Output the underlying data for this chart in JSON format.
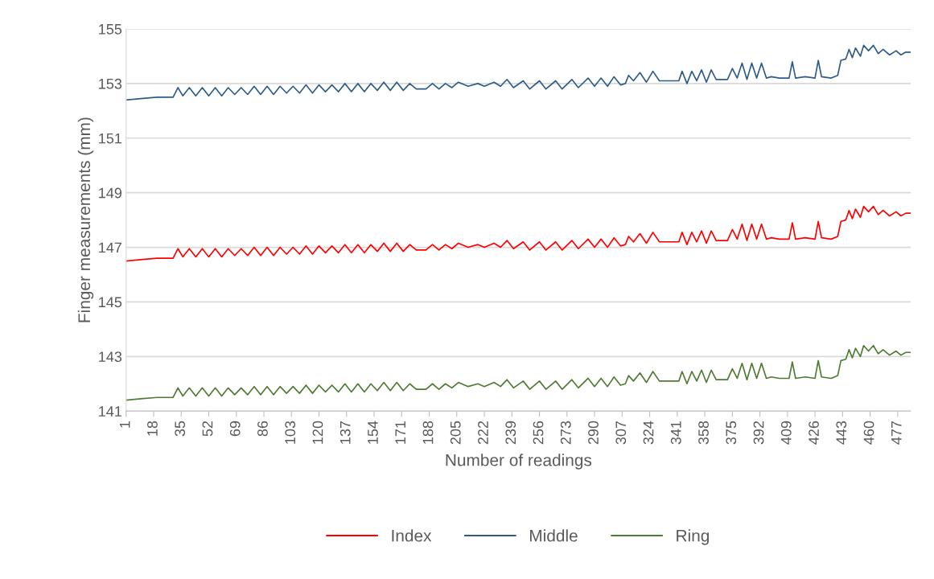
{
  "chart_data": {
    "type": "line",
    "xlabel": "Number of readings",
    "ylabel": "Finger measurements (mm)",
    "x": [
      1,
      10,
      20,
      30,
      33,
      36,
      40,
      44,
      48,
      52,
      56,
      60,
      64,
      68,
      72,
      76,
      80,
      84,
      88,
      92,
      96,
      100,
      104,
      108,
      112,
      116,
      120,
      124,
      128,
      132,
      136,
      140,
      144,
      148,
      152,
      156,
      160,
      164,
      168,
      172,
      176,
      180,
      186,
      190,
      194,
      198,
      202,
      206,
      212,
      218,
      222,
      228,
      232,
      236,
      240,
      246,
      250,
      256,
      260,
      266,
      270,
      276,
      280,
      286,
      290,
      294,
      298,
      302,
      306,
      309,
      311,
      314,
      318,
      322,
      326,
      330,
      335,
      342,
      344,
      347,
      350,
      353,
      356,
      359,
      362,
      365,
      372,
      375,
      378,
      381,
      384,
      387,
      390,
      393,
      396,
      399,
      404,
      410,
      412,
      414,
      420,
      426,
      428,
      430,
      436,
      440,
      442,
      445,
      447,
      449,
      451,
      454,
      456,
      459,
      462,
      465,
      468,
      472,
      476,
      479,
      482,
      485
    ],
    "series": [
      {
        "name": "Index",
        "color": "#ff0000",
        "values": [
          146.5,
          146.55,
          146.6,
          146.6,
          146.95,
          146.65,
          146.95,
          146.65,
          146.95,
          146.65,
          146.95,
          146.65,
          146.95,
          146.7,
          146.95,
          146.7,
          147.0,
          146.7,
          147.0,
          146.7,
          147.0,
          146.75,
          147.0,
          146.75,
          147.05,
          146.75,
          147.05,
          146.8,
          147.05,
          146.8,
          147.1,
          146.8,
          147.1,
          146.8,
          147.1,
          146.85,
          147.15,
          146.85,
          147.15,
          146.85,
          147.1,
          146.9,
          146.9,
          147.1,
          146.9,
          147.1,
          146.95,
          147.15,
          147.0,
          147.1,
          147.0,
          147.15,
          147.0,
          147.25,
          146.95,
          147.2,
          146.9,
          147.2,
          146.9,
          147.2,
          146.9,
          147.25,
          146.95,
          147.3,
          147.0,
          147.3,
          147.0,
          147.35,
          147.05,
          147.1,
          147.4,
          147.2,
          147.5,
          147.15,
          147.55,
          147.2,
          147.2,
          147.2,
          147.55,
          147.1,
          147.55,
          147.2,
          147.6,
          147.15,
          147.6,
          147.25,
          147.25,
          147.65,
          147.3,
          147.85,
          147.25,
          147.85,
          147.3,
          147.85,
          147.3,
          147.35,
          147.3,
          147.3,
          147.9,
          147.3,
          147.35,
          147.3,
          147.95,
          147.35,
          147.3,
          147.4,
          147.95,
          148.0,
          148.35,
          148.05,
          148.4,
          148.1,
          148.5,
          148.3,
          148.5,
          148.2,
          148.35,
          148.15,
          148.3,
          148.15,
          148.25,
          148.25
        ]
      },
      {
        "name": "Middle",
        "color": "#2e5c8a",
        "values": [
          152.4,
          152.45,
          152.5,
          152.5,
          152.85,
          152.55,
          152.85,
          152.55,
          152.85,
          152.55,
          152.85,
          152.55,
          152.85,
          152.6,
          152.85,
          152.6,
          152.9,
          152.6,
          152.9,
          152.6,
          152.9,
          152.65,
          152.9,
          152.65,
          152.95,
          152.65,
          152.95,
          152.7,
          152.95,
          152.7,
          153.0,
          152.7,
          153.0,
          152.7,
          153.0,
          152.75,
          153.05,
          152.75,
          153.05,
          152.75,
          153.0,
          152.8,
          152.8,
          153.0,
          152.8,
          153.0,
          152.85,
          153.05,
          152.9,
          153.0,
          152.9,
          153.05,
          152.9,
          153.15,
          152.85,
          153.1,
          152.8,
          153.1,
          152.8,
          153.1,
          152.8,
          153.15,
          152.85,
          153.2,
          152.9,
          153.2,
          152.9,
          153.25,
          152.95,
          153.0,
          153.3,
          153.1,
          153.4,
          153.05,
          153.45,
          153.1,
          153.1,
          153.1,
          153.45,
          153.0,
          153.45,
          153.1,
          153.5,
          153.05,
          153.5,
          153.15,
          153.15,
          153.55,
          153.2,
          153.75,
          153.15,
          153.75,
          153.2,
          153.75,
          153.2,
          153.25,
          153.2,
          153.2,
          153.8,
          153.2,
          153.25,
          153.2,
          153.85,
          153.25,
          153.2,
          153.3,
          153.85,
          153.9,
          154.25,
          153.95,
          154.3,
          154.0,
          154.4,
          154.2,
          154.4,
          154.1,
          154.25,
          154.05,
          154.2,
          154.05,
          154.15,
          154.15
        ]
      },
      {
        "name": "Ring",
        "color": "#4f7a32",
        "values": [
          141.4,
          141.45,
          141.5,
          141.5,
          141.85,
          141.55,
          141.85,
          141.55,
          141.85,
          141.55,
          141.85,
          141.55,
          141.85,
          141.6,
          141.85,
          141.6,
          141.9,
          141.6,
          141.9,
          141.6,
          141.9,
          141.65,
          141.9,
          141.65,
          141.95,
          141.65,
          141.95,
          141.7,
          141.95,
          141.7,
          142.0,
          141.7,
          142.0,
          141.7,
          142.0,
          141.75,
          142.05,
          141.75,
          142.05,
          141.75,
          142.0,
          141.8,
          141.8,
          142.0,
          141.8,
          142.0,
          141.85,
          142.05,
          141.9,
          142.0,
          141.9,
          142.05,
          141.9,
          142.15,
          141.85,
          142.1,
          141.8,
          142.1,
          141.8,
          142.1,
          141.8,
          142.15,
          141.85,
          142.2,
          141.9,
          142.2,
          141.9,
          142.25,
          141.95,
          142.0,
          142.3,
          142.1,
          142.4,
          142.05,
          142.45,
          142.1,
          142.1,
          142.1,
          142.45,
          142.0,
          142.45,
          142.1,
          142.5,
          142.05,
          142.5,
          142.15,
          142.15,
          142.55,
          142.2,
          142.75,
          142.15,
          142.75,
          142.2,
          142.75,
          142.2,
          142.25,
          142.2,
          142.2,
          142.8,
          142.2,
          142.25,
          142.2,
          142.85,
          142.25,
          142.2,
          142.3,
          142.85,
          142.9,
          143.25,
          142.95,
          143.3,
          143.0,
          143.4,
          143.2,
          143.4,
          143.1,
          143.25,
          143.05,
          143.2,
          143.05,
          143.15,
          143.15
        ]
      }
    ],
    "xlim": [
      1,
      485
    ],
    "xticks": [
      1,
      18,
      35,
      52,
      69,
      86,
      103,
      120,
      137,
      154,
      171,
      188,
      205,
      222,
      239,
      256,
      273,
      290,
      307,
      324,
      341,
      358,
      375,
      392,
      409,
      426,
      443,
      460,
      477
    ],
    "ylim": [
      141,
      155
    ],
    "yticks": [
      141,
      143,
      145,
      147,
      149,
      151,
      153,
      155
    ],
    "grid": "y",
    "legend": "bottom",
    "line_style": "solid",
    "marker": "none"
  }
}
